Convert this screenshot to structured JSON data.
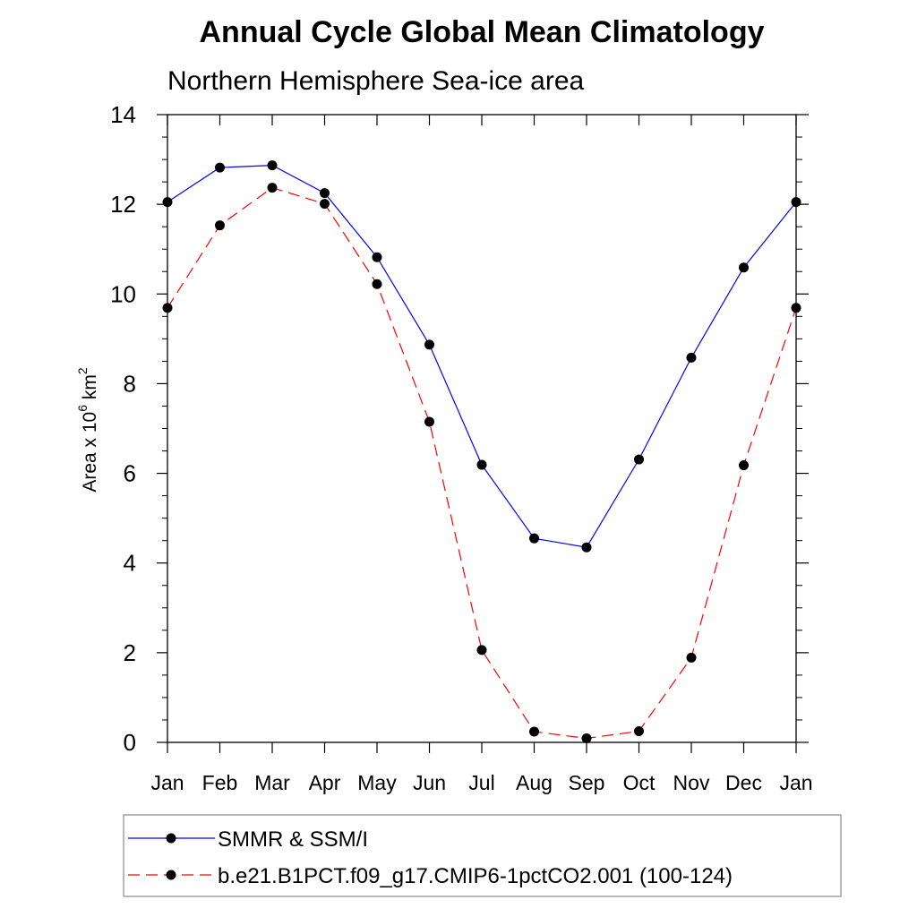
{
  "chart_data": {
    "type": "line",
    "title": "Annual Cycle Global Mean Climatology",
    "subtitle": "Northern Hemisphere Sea-ice area",
    "ylabel_main": "Area x 10",
    "ylabel_sup1": "6",
    "ylabel_unit": " km",
    "ylabel_sup2": "2",
    "ylim": [
      0,
      14
    ],
    "yticks": [
      0,
      2,
      4,
      6,
      8,
      10,
      12,
      14
    ],
    "yticks_labels": [
      "0",
      "2",
      "4",
      "6",
      "8",
      "10",
      "12",
      "14"
    ],
    "categories": [
      "Jan",
      "Feb",
      "Mar",
      "Apr",
      "May",
      "Jun",
      "Jul",
      "Aug",
      "Sep",
      "Oct",
      "Nov",
      "Dec",
      "Jan"
    ],
    "series": [
      {
        "name": "SMMR & SSM/I",
        "color": "#0000ff",
        "dash": "solid",
        "values": [
          12.05,
          12.82,
          12.87,
          12.25,
          10.82,
          8.87,
          6.19,
          4.55,
          4.35,
          6.31,
          8.58,
          10.59,
          12.05
        ]
      },
      {
        "name": "b.e21.B1PCT.f09_g17.CMIP6-1pctCO2.001 (100-124)",
        "color": "#ff0000",
        "dash": "dashed",
        "values": [
          9.69,
          11.53,
          12.37,
          12.01,
          10.22,
          7.15,
          2.06,
          0.24,
          0.09,
          0.25,
          1.89,
          6.18,
          9.69
        ]
      }
    ],
    "marker_color": "#000000",
    "legend_position": "bottom"
  }
}
